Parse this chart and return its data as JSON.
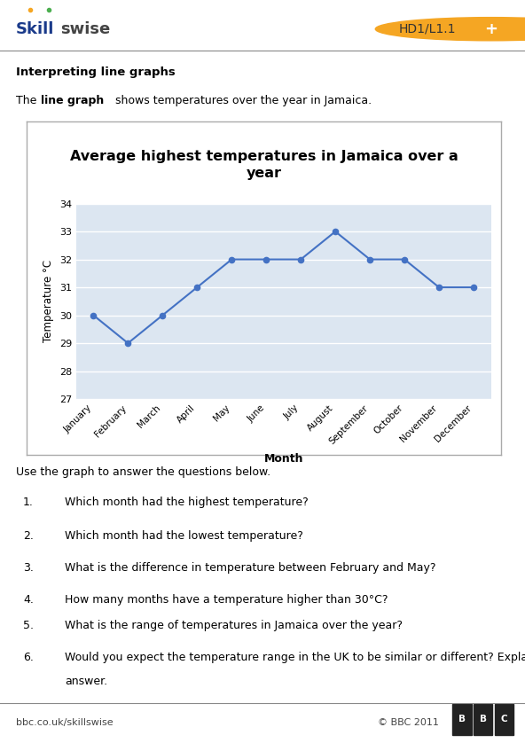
{
  "title": "Average highest temperatures in Jamaica over a\nyear",
  "months": [
    "January",
    "February",
    "March",
    "April",
    "May",
    "June",
    "July",
    "August",
    "September",
    "October",
    "November",
    "December"
  ],
  "temperatures": [
    30,
    29,
    30,
    31,
    32,
    32,
    32,
    33,
    32,
    32,
    31,
    31
  ],
  "ylabel": "Temperature °C",
  "xlabel": "Month",
  "ylim": [
    27,
    34
  ],
  "yticks": [
    27,
    28,
    29,
    30,
    31,
    32,
    33,
    34
  ],
  "line_color": "#4472C4",
  "marker_color": "#4472C4",
  "bg_color": "#dce6f1",
  "chart_border_color": "#aaaaaa",
  "page_bg": "#ffffff",
  "header_code": "HD1/L1.1",
  "section_title": "Interpreting line graphs",
  "questions": [
    "Which month had the highest temperature?",
    "Which month had the lowest temperature?",
    "What is the difference in temperature between February and May?",
    "How many months have a temperature higher than 30°C?",
    "What is the range of temperatures in Jamaica over the year?",
    "Would you expect the temperature range in the UK to be similar or different? Explain your\nanswer."
  ],
  "footer_left": "bbc.co.uk/skillswise",
  "use_graph_text": "Use the graph to answer the questions below."
}
